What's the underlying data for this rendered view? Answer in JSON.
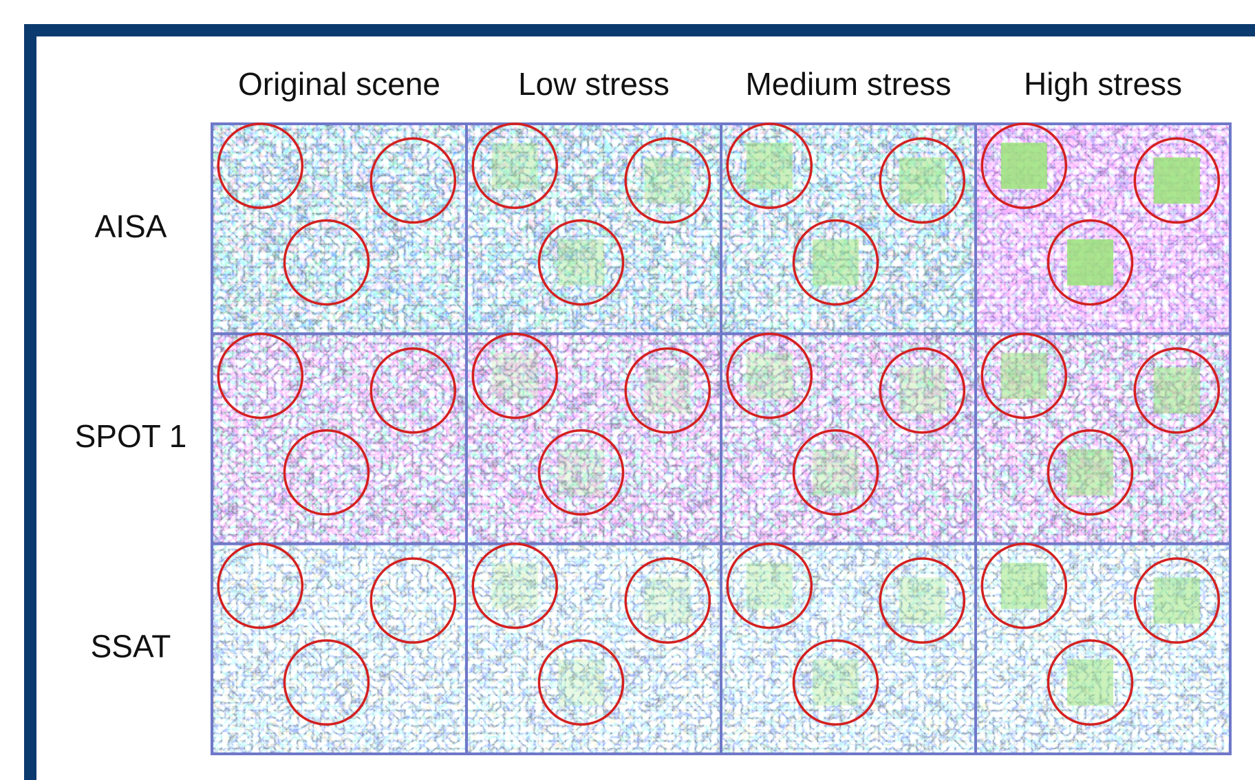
{
  "columns": [
    "Original scene",
    "Low stress",
    "Medium stress",
    "High stress"
  ],
  "rows": [
    "AISA",
    "SPOT 1",
    "SSAT"
  ]
}
